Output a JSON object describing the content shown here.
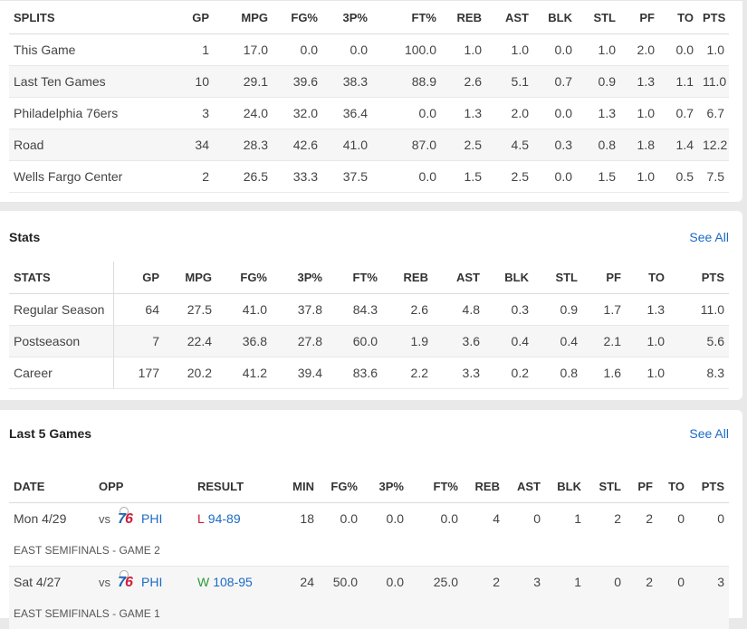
{
  "splits": {
    "headers": [
      "SPLITS",
      "GP",
      "MPG",
      "FG%",
      "3P%",
      "FT%",
      "REB",
      "AST",
      "BLK",
      "STL",
      "PF",
      "TO",
      "PTS"
    ],
    "rows": [
      [
        "This Game",
        "1",
        "17.0",
        "0.0",
        "0.0",
        "100.0",
        "1.0",
        "1.0",
        "0.0",
        "1.0",
        "2.0",
        "0.0",
        "1.0"
      ],
      [
        "Last Ten Games",
        "10",
        "29.1",
        "39.6",
        "38.3",
        "88.9",
        "2.6",
        "5.1",
        "0.7",
        "0.9",
        "1.3",
        "1.1",
        "11.0"
      ],
      [
        "Philadelphia 76ers",
        "3",
        "24.0",
        "32.0",
        "36.4",
        "0.0",
        "1.3",
        "2.0",
        "0.0",
        "1.3",
        "1.0",
        "0.7",
        "6.7"
      ],
      [
        "Road",
        "34",
        "28.3",
        "42.6",
        "41.0",
        "87.0",
        "2.5",
        "4.5",
        "0.3",
        "0.8",
        "1.8",
        "1.4",
        "12.2"
      ],
      [
        "Wells Fargo Center",
        "2",
        "26.5",
        "33.3",
        "37.5",
        "0.0",
        "1.5",
        "2.5",
        "0.0",
        "1.5",
        "1.0",
        "0.5",
        "7.5"
      ]
    ]
  },
  "stats": {
    "title": "Stats",
    "see_all": "See All",
    "headers": [
      "STATS",
      "GP",
      "MPG",
      "FG%",
      "3P%",
      "FT%",
      "REB",
      "AST",
      "BLK",
      "STL",
      "PF",
      "TO",
      "PTS"
    ],
    "rows": [
      [
        "Regular Season",
        "64",
        "27.5",
        "41.0",
        "37.8",
        "84.3",
        "2.6",
        "4.8",
        "0.3",
        "0.9",
        "1.7",
        "1.3",
        "11.0"
      ],
      [
        "Postseason",
        "7",
        "22.4",
        "36.8",
        "27.8",
        "60.0",
        "1.9",
        "3.6",
        "0.4",
        "0.4",
        "2.1",
        "1.0",
        "5.6"
      ],
      [
        "Career",
        "177",
        "20.2",
        "41.2",
        "39.4",
        "83.6",
        "2.2",
        "3.3",
        "0.2",
        "0.8",
        "1.6",
        "1.0",
        "8.3"
      ]
    ]
  },
  "last5": {
    "title": "Last 5 Games",
    "see_all": "See All",
    "headers": [
      "DATE",
      "OPP",
      "RESULT",
      "MIN",
      "FG%",
      "3P%",
      "FT%",
      "REB",
      "AST",
      "BLK",
      "STL",
      "PF",
      "TO",
      "PTS"
    ],
    "games": [
      {
        "date": "Mon 4/29",
        "vs": "vs",
        "team": "PHI",
        "wl": "L",
        "score": "94-89",
        "stats": [
          "18",
          "0.0",
          "0.0",
          "0.0",
          "4",
          "0",
          "1",
          "2",
          "2",
          "0",
          "0"
        ],
        "note": "EAST SEMIFINALS - GAME 2"
      },
      {
        "date": "Sat 4/27",
        "vs": "vs",
        "team": "PHI",
        "wl": "W",
        "score": "108-95",
        "stats": [
          "24",
          "50.0",
          "0.0",
          "25.0",
          "2",
          "3",
          "1",
          "0",
          "2",
          "0",
          "3"
        ],
        "note": "EAST SEMIFINALS - GAME 1"
      }
    ]
  },
  "colors": {
    "link": "#1b6ac6",
    "loss": "#d1122e",
    "win": "#2a9a3a"
  }
}
